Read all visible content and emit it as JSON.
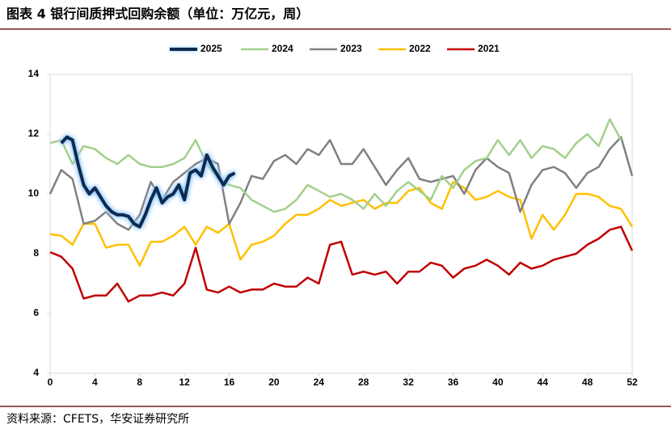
{
  "chart_data": {
    "type": "line",
    "title": "图表 4  银行间质押式回购余额（单位：万亿元，周）",
    "source": "资料来源：CFETS，华安证券研究所",
    "xlim": [
      0,
      52
    ],
    "xticks": [
      0,
      4,
      8,
      12,
      16,
      20,
      24,
      28,
      32,
      36,
      40,
      44,
      48,
      52
    ],
    "ylim": [
      4,
      14
    ],
    "yticks": [
      4,
      6,
      8,
      10,
      12,
      14
    ],
    "series": [
      {
        "name": "2025",
        "color": "#0d2a4f",
        "x": [
          1,
          1.5,
          2,
          2.5,
          3,
          3.5,
          4,
          4.5,
          5,
          5.5,
          6,
          6.5,
          7,
          7.5,
          8,
          8.5,
          9,
          9.5,
          10,
          10.5,
          11,
          11.5,
          12,
          12.5,
          13,
          13.5,
          14,
          14.5,
          15,
          15.5,
          16,
          16.5
        ],
        "values": [
          11.7,
          11.9,
          11.8,
          11.0,
          10.3,
          10.0,
          10.2,
          9.9,
          9.6,
          9.4,
          9.3,
          9.3,
          9.25,
          9.0,
          8.9,
          9.3,
          9.8,
          10.2,
          9.7,
          9.9,
          10.0,
          10.3,
          9.8,
          10.7,
          10.8,
          10.6,
          11.3,
          10.9,
          10.6,
          10.3,
          10.6,
          10.7
        ]
      },
      {
        "name": "2024",
        "color": "#a3d08b",
        "x": [
          0,
          1,
          2,
          3,
          4,
          5,
          6,
          7,
          8,
          9,
          10,
          11,
          12,
          13,
          14,
          15,
          16,
          17,
          18,
          19,
          20,
          21,
          22,
          23,
          24,
          25,
          26,
          27,
          28,
          29,
          30,
          31,
          32,
          33,
          34,
          35,
          36,
          37,
          38,
          39,
          40,
          41,
          42,
          43,
          44,
          45,
          46,
          47,
          48,
          49,
          50,
          51
        ],
        "values": [
          11.7,
          11.8,
          11.0,
          11.6,
          11.5,
          11.2,
          11.0,
          11.3,
          11.0,
          10.9,
          10.9,
          11.0,
          11.2,
          11.8,
          11.0,
          10.5,
          10.3,
          10.2,
          9.8,
          9.6,
          9.4,
          9.5,
          9.8,
          10.3,
          10.1,
          9.9,
          10.0,
          9.8,
          9.5,
          10.0,
          9.6,
          10.1,
          10.4,
          10.1,
          9.8,
          10.6,
          10.2,
          10.8,
          11.1,
          11.2,
          11.8,
          11.3,
          11.8,
          11.2,
          11.6,
          11.5,
          11.2,
          11.7,
          12.0,
          11.6,
          12.5,
          11.8
        ]
      },
      {
        "name": "2023",
        "color": "#808080",
        "x": [
          0,
          1,
          2,
          3,
          4,
          5,
          6,
          7,
          8,
          9,
          10,
          11,
          12,
          13,
          14,
          15,
          16,
          17,
          18,
          19,
          20,
          21,
          22,
          23,
          24,
          25,
          26,
          27,
          28,
          29,
          30,
          31,
          32,
          33,
          34,
          35,
          36,
          37,
          38,
          39,
          40,
          41,
          42,
          43,
          44,
          45,
          46,
          47,
          48,
          49,
          50,
          51,
          52
        ],
        "values": [
          10.0,
          10.8,
          10.5,
          9.0,
          9.1,
          9.4,
          9.0,
          8.8,
          9.3,
          10.4,
          9.8,
          10.4,
          10.7,
          11.0,
          11.2,
          11.0,
          9.0,
          9.7,
          10.6,
          10.5,
          11.1,
          11.3,
          11.0,
          11.5,
          11.3,
          11.8,
          11.0,
          11.0,
          11.5,
          10.9,
          10.3,
          10.8,
          11.2,
          10.5,
          10.4,
          10.5,
          10.6,
          10.0,
          10.8,
          11.2,
          10.9,
          10.7,
          9.4,
          10.3,
          10.8,
          10.9,
          10.7,
          10.2,
          10.7,
          10.9,
          11.5,
          11.9,
          10.6
        ]
      },
      {
        "name": "2022",
        "color": "#ffc000",
        "x": [
          0,
          1,
          2,
          3,
          4,
          5,
          6,
          7,
          8,
          9,
          10,
          11,
          12,
          13,
          14,
          15,
          16,
          17,
          18,
          19,
          20,
          21,
          22,
          23,
          24,
          25,
          26,
          27,
          28,
          29,
          30,
          31,
          32,
          33,
          34,
          35,
          36,
          37,
          38,
          39,
          40,
          41,
          42,
          43,
          44,
          45,
          46,
          47,
          48,
          49,
          50,
          51,
          52
        ],
        "values": [
          8.65,
          8.6,
          8.3,
          9.0,
          9.0,
          8.2,
          8.3,
          8.3,
          7.6,
          8.4,
          8.4,
          8.6,
          8.9,
          8.3,
          8.9,
          8.7,
          9.0,
          7.8,
          8.3,
          8.4,
          8.6,
          9.0,
          9.3,
          9.3,
          9.5,
          9.8,
          9.6,
          9.7,
          9.8,
          9.5,
          9.7,
          9.7,
          10.1,
          10.2,
          9.7,
          9.5,
          10.4,
          10.2,
          9.8,
          9.9,
          10.1,
          9.9,
          9.8,
          8.5,
          9.3,
          8.8,
          9.3,
          10.0,
          10.0,
          9.9,
          9.6,
          9.5,
          8.9
        ]
      },
      {
        "name": "2021",
        "color": "#c00000",
        "x": [
          0,
          1,
          2,
          3,
          4,
          5,
          6,
          7,
          8,
          9,
          10,
          11,
          12,
          13,
          14,
          15,
          16,
          17,
          18,
          19,
          20,
          21,
          22,
          23,
          24,
          25,
          26,
          27,
          28,
          29,
          30,
          31,
          32,
          33,
          34,
          35,
          36,
          37,
          38,
          39,
          40,
          41,
          42,
          43,
          44,
          45,
          46,
          47,
          48,
          49,
          50,
          51,
          52
        ],
        "values": [
          8.05,
          7.9,
          7.5,
          6.5,
          6.6,
          6.6,
          7.0,
          6.4,
          6.6,
          6.6,
          6.7,
          6.6,
          7.0,
          8.2,
          6.8,
          6.7,
          6.9,
          6.7,
          6.8,
          6.8,
          7.0,
          6.9,
          6.9,
          7.2,
          7.0,
          8.3,
          8.4,
          7.3,
          7.4,
          7.3,
          7.4,
          7.0,
          7.4,
          7.4,
          7.7,
          7.6,
          7.2,
          7.5,
          7.6,
          7.8,
          7.6,
          7.3,
          7.7,
          7.5,
          7.6,
          7.8,
          7.9,
          8.0,
          8.3,
          8.5,
          8.8,
          8.9,
          8.1
        ]
      }
    ]
  }
}
